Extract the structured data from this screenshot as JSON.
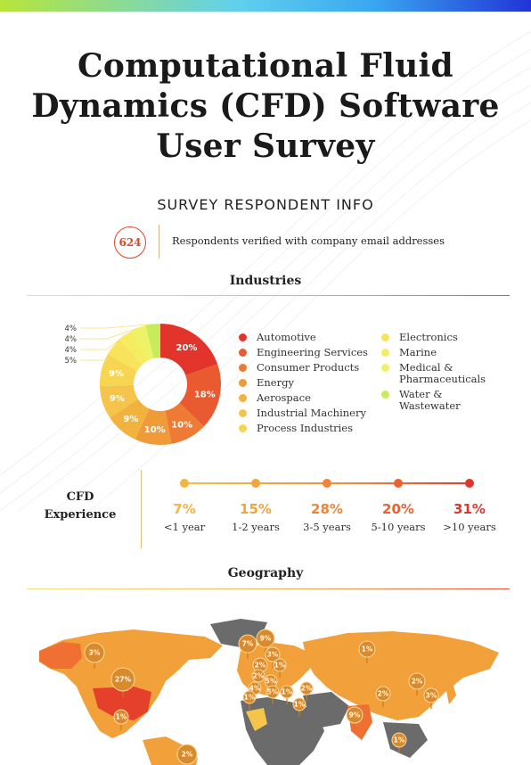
{
  "title": {
    "line1": "Computational Fluid",
    "line2": "Dynamics (CFD) Software",
    "line3": "User Survey"
  },
  "respondent_section": {
    "heading": "SURVEY RESPONDENT INFO",
    "count": "624",
    "count_text": "Respondents verified with company email addresses"
  },
  "industries": {
    "heading": "Industries",
    "legend_left": [
      {
        "label": "Automotive",
        "color": "#e3342b"
      },
      {
        "label": "Engineering Services",
        "color": "#ea5a30"
      },
      {
        "label": "Consumer Products",
        "color": "#ee7a33"
      },
      {
        "label": "Energy",
        "color": "#f09a38"
      },
      {
        "label": "Aerospace",
        "color": "#f2b23e"
      },
      {
        "label": "Industrial Machinery",
        "color": "#f5c44a"
      },
      {
        "label": "Process Industries",
        "color": "#f7d553"
      }
    ],
    "legend_right": [
      {
        "label": "Electronics",
        "color": "#f8e45a"
      },
      {
        "label": "Marine",
        "color": "#f5ed60"
      },
      {
        "label": "Medical &",
        "label2": "Pharmaceuticals",
        "color": "#eef266"
      },
      {
        "label": "Water &",
        "label2": "Wastewater",
        "color": "#c6ec5e"
      }
    ]
  },
  "chart_data": {
    "type": "pie",
    "categories": [
      "Automotive",
      "Engineering Services",
      "Consumer Products",
      "Energy",
      "Aerospace",
      "Industrial Machinery",
      "Process Industries",
      "Electronics",
      "Marine",
      "Medical & Pharmaceuticals",
      "Water & Wastewater"
    ],
    "values": [
      20,
      18,
      10,
      10,
      9,
      9,
      9,
      5,
      4,
      4,
      4
    ],
    "labels": [
      "20%",
      "18%",
      "10%",
      "10%",
      "9%",
      "9%",
      "9%",
      "5%",
      "4%",
      "4%",
      "4%"
    ],
    "colors": [
      "#e3342b",
      "#ea5a30",
      "#ee7a33",
      "#f09a38",
      "#f2b23e",
      "#f5c44a",
      "#f7d553",
      "#f8e45a",
      "#f5ed60",
      "#eef266",
      "#c6ec5e"
    ]
  },
  "experience": {
    "label_line1": "CFD",
    "label_line2": "Experience",
    "items": [
      {
        "pct": "7%",
        "years": "<1 year",
        "color": "#f3b640"
      },
      {
        "pct": "15%",
        "years": "1-2 years",
        "color": "#f1a43c"
      },
      {
        "pct": "28%",
        "years": "3-5 years",
        "color": "#ee8537"
      },
      {
        "pct": "20%",
        "years": "5-10 years",
        "color": "#ea6232"
      },
      {
        "pct": "31%",
        "years": ">10 years",
        "color": "#e3342b"
      }
    ]
  },
  "geography": {
    "heading": "Geography",
    "pins": [
      "3%",
      "27%",
      "1%",
      "2%",
      "7%",
      "9%",
      "3%",
      "2%",
      "1%",
      "2%",
      "5%",
      "4%",
      "1%",
      "2%",
      "5%",
      "1%",
      "2%",
      "1%",
      "9%",
      "1%",
      "2%",
      "3%",
      "1%",
      "1%"
    ]
  }
}
